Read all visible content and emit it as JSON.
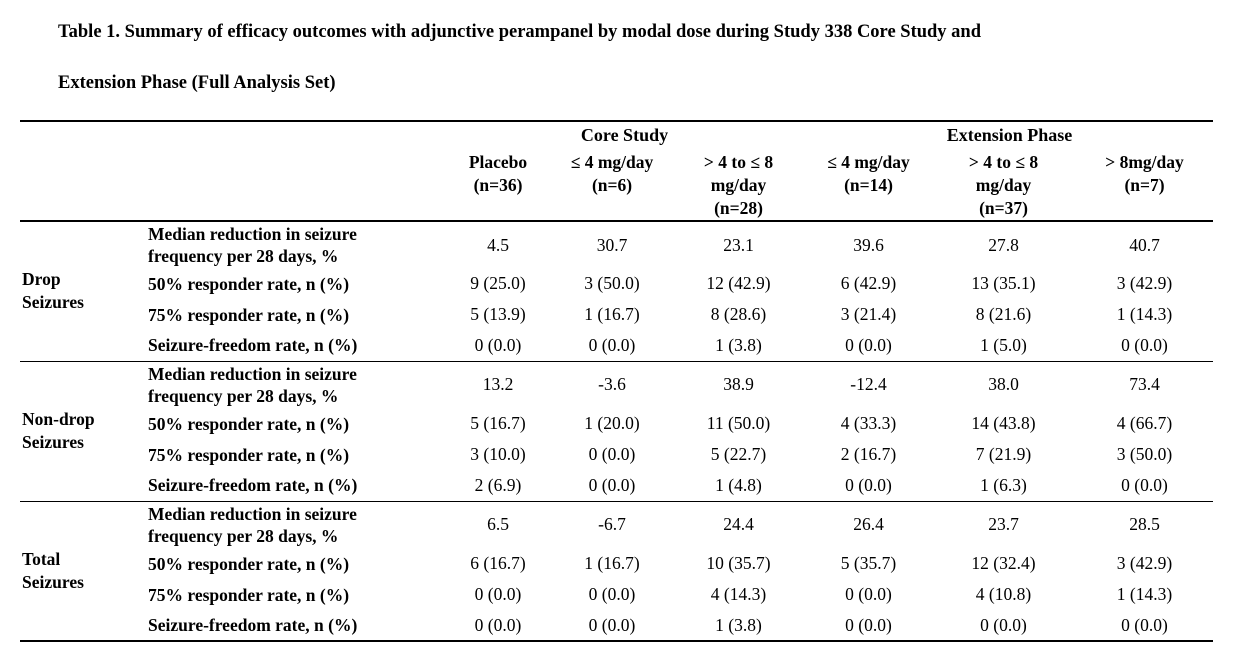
{
  "page": {
    "title_line1": "Table 1. Summary of efficacy outcomes with adjunctive perampanel by modal dose during Study 338 Core Study and",
    "title_line2": "Extension Phase (Full Analysis Set)"
  },
  "table": {
    "spanners": [
      {
        "label": "Core Study"
      },
      {
        "label": "Extension Phase"
      }
    ],
    "columns": [
      {
        "line1": "Placebo",
        "line2": "(n=36)"
      },
      {
        "line1": "≤ 4 mg/day",
        "line2": "(n=6)"
      },
      {
        "line1": "> 4 to ≤ 8",
        "line2": "mg/day",
        "line3": "(n=28)"
      },
      {
        "line1": "≤ 4 mg/day",
        "line2": "(n=14)"
      },
      {
        "line1": "> 4 to ≤ 8",
        "line2": "mg/day",
        "line3": "(n=37)"
      },
      {
        "line1": "> 8mg/day",
        "line2": "(n=7)"
      }
    ],
    "groups": [
      {
        "label": "Drop Seizures",
        "rows": [
          {
            "metric": "Median reduction in seizure frequency per 28 days, %",
            "values": [
              "4.5",
              "30.7",
              "23.1",
              "39.6",
              "27.8",
              "40.7"
            ]
          },
          {
            "metric": "50% responder rate, n (%)",
            "values": [
              "9 (25.0)",
              "3 (50.0)",
              "12 (42.9)",
              "6 (42.9)",
              "13 (35.1)",
              "3 (42.9)"
            ]
          },
          {
            "metric": "75% responder rate, n (%)",
            "values": [
              "5 (13.9)",
              "1 (16.7)",
              "8 (28.6)",
              "3 (21.4)",
              "8 (21.6)",
              "1 (14.3)"
            ]
          },
          {
            "metric": "Seizure-freedom rate, n (%)",
            "values": [
              "0 (0.0)",
              "0 (0.0)",
              "1 (3.8)",
              "0 (0.0)",
              "1 (5.0)",
              "0 (0.0)"
            ]
          }
        ]
      },
      {
        "label": "Non-drop Seizures",
        "rows": [
          {
            "metric": "Median reduction in seizure frequency per 28 days, %",
            "values": [
              "13.2",
              "-3.6",
              "38.9",
              "-12.4",
              "38.0",
              "73.4"
            ]
          },
          {
            "metric": "50% responder rate, n (%)",
            "values": [
              "5 (16.7)",
              "1 (20.0)",
              "11 (50.0)",
              "4 (33.3)",
              "14 (43.8)",
              "4 (66.7)"
            ]
          },
          {
            "metric": "75% responder rate, n (%)",
            "values": [
              "3 (10.0)",
              "0 (0.0)",
              "5 (22.7)",
              "2 (16.7)",
              "7 (21.9)",
              "3 (50.0)"
            ]
          },
          {
            "metric": "Seizure-freedom rate, n (%)",
            "values": [
              "2 (6.9)",
              "0 (0.0)",
              "1 (4.8)",
              "0 (0.0)",
              "1 (6.3)",
              "0 (0.0)"
            ]
          }
        ]
      },
      {
        "label": "Total Seizures",
        "rows": [
          {
            "metric": "Median reduction in seizure frequency per 28 days, %",
            "values": [
              "6.5",
              "-6.7",
              "24.4",
              "26.4",
              "23.7",
              "28.5"
            ]
          },
          {
            "metric": "50% responder rate, n (%)",
            "values": [
              "6 (16.7)",
              "1 (16.7)",
              "10 (35.7)",
              "5 (35.7)",
              "12 (32.4)",
              "3 (42.9)"
            ]
          },
          {
            "metric": "75% responder rate, n (%)",
            "values": [
              "0 (0.0)",
              "0 (0.0)",
              "4 (14.3)",
              "0 (0.0)",
              "4 (10.8)",
              "1 (14.3)"
            ]
          },
          {
            "metric": "Seizure-freedom rate, n (%)",
            "values": [
              "0 (0.0)",
              "0 (0.0)",
              "1 (3.8)",
              "0 (0.0)",
              "0 (0.0)",
              "0 (0.0)"
            ]
          }
        ]
      }
    ]
  }
}
